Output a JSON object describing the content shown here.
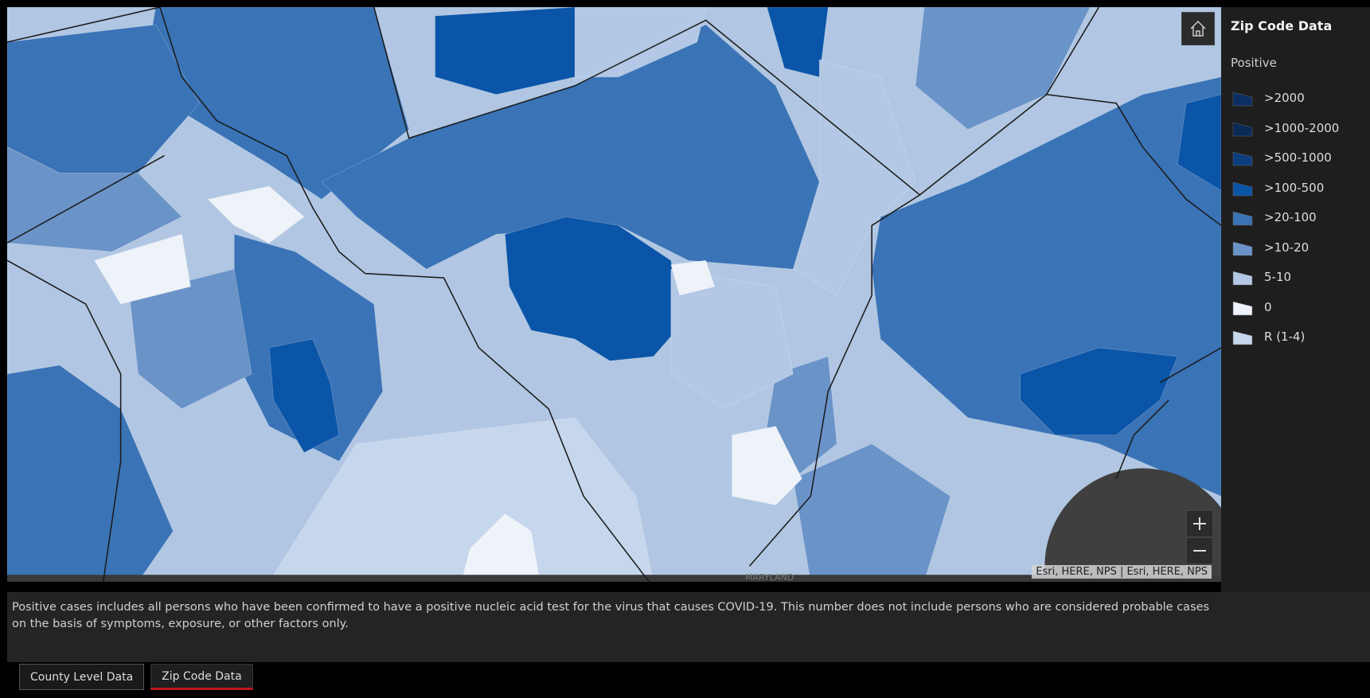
{
  "map": {
    "labels": [
      "MARYLAND"
    ],
    "attribution": "Esri, HERE, NPS | Esri, HERE, NPS"
  },
  "legend": {
    "title": "Zip Code Data",
    "field": "Positive",
    "items": [
      {
        "label": ">2000",
        "color": "#0b2f63"
      },
      {
        "label": ">1000-2000",
        "color": "#0a2a57"
      },
      {
        "label": ">500-1000",
        "color": "#0c3e7e"
      },
      {
        "label": ">100-500",
        "color": "#0b55a8"
      },
      {
        "label": ">20-100",
        "color": "#3a73b6"
      },
      {
        "label": ">10-20",
        "color": "#6a93c8"
      },
      {
        "label": "5-10",
        "color": "#b3c8e4"
      },
      {
        "label": "0",
        "color": "#eef2f9"
      },
      {
        "label": "R (1-4)",
        "color": "#c6d6ec"
      }
    ]
  },
  "note": "Positive cases includes all persons who have been confirmed to have a positive nucleic acid test for the virus that causes COVID-19.  This number does not include persons who are considered probable cases on the basis of symptoms, exposure, or other factors only.",
  "tabs": [
    {
      "label": "County Level Data",
      "active": false
    },
    {
      "label": "Zip Code Data",
      "active": true
    }
  ]
}
